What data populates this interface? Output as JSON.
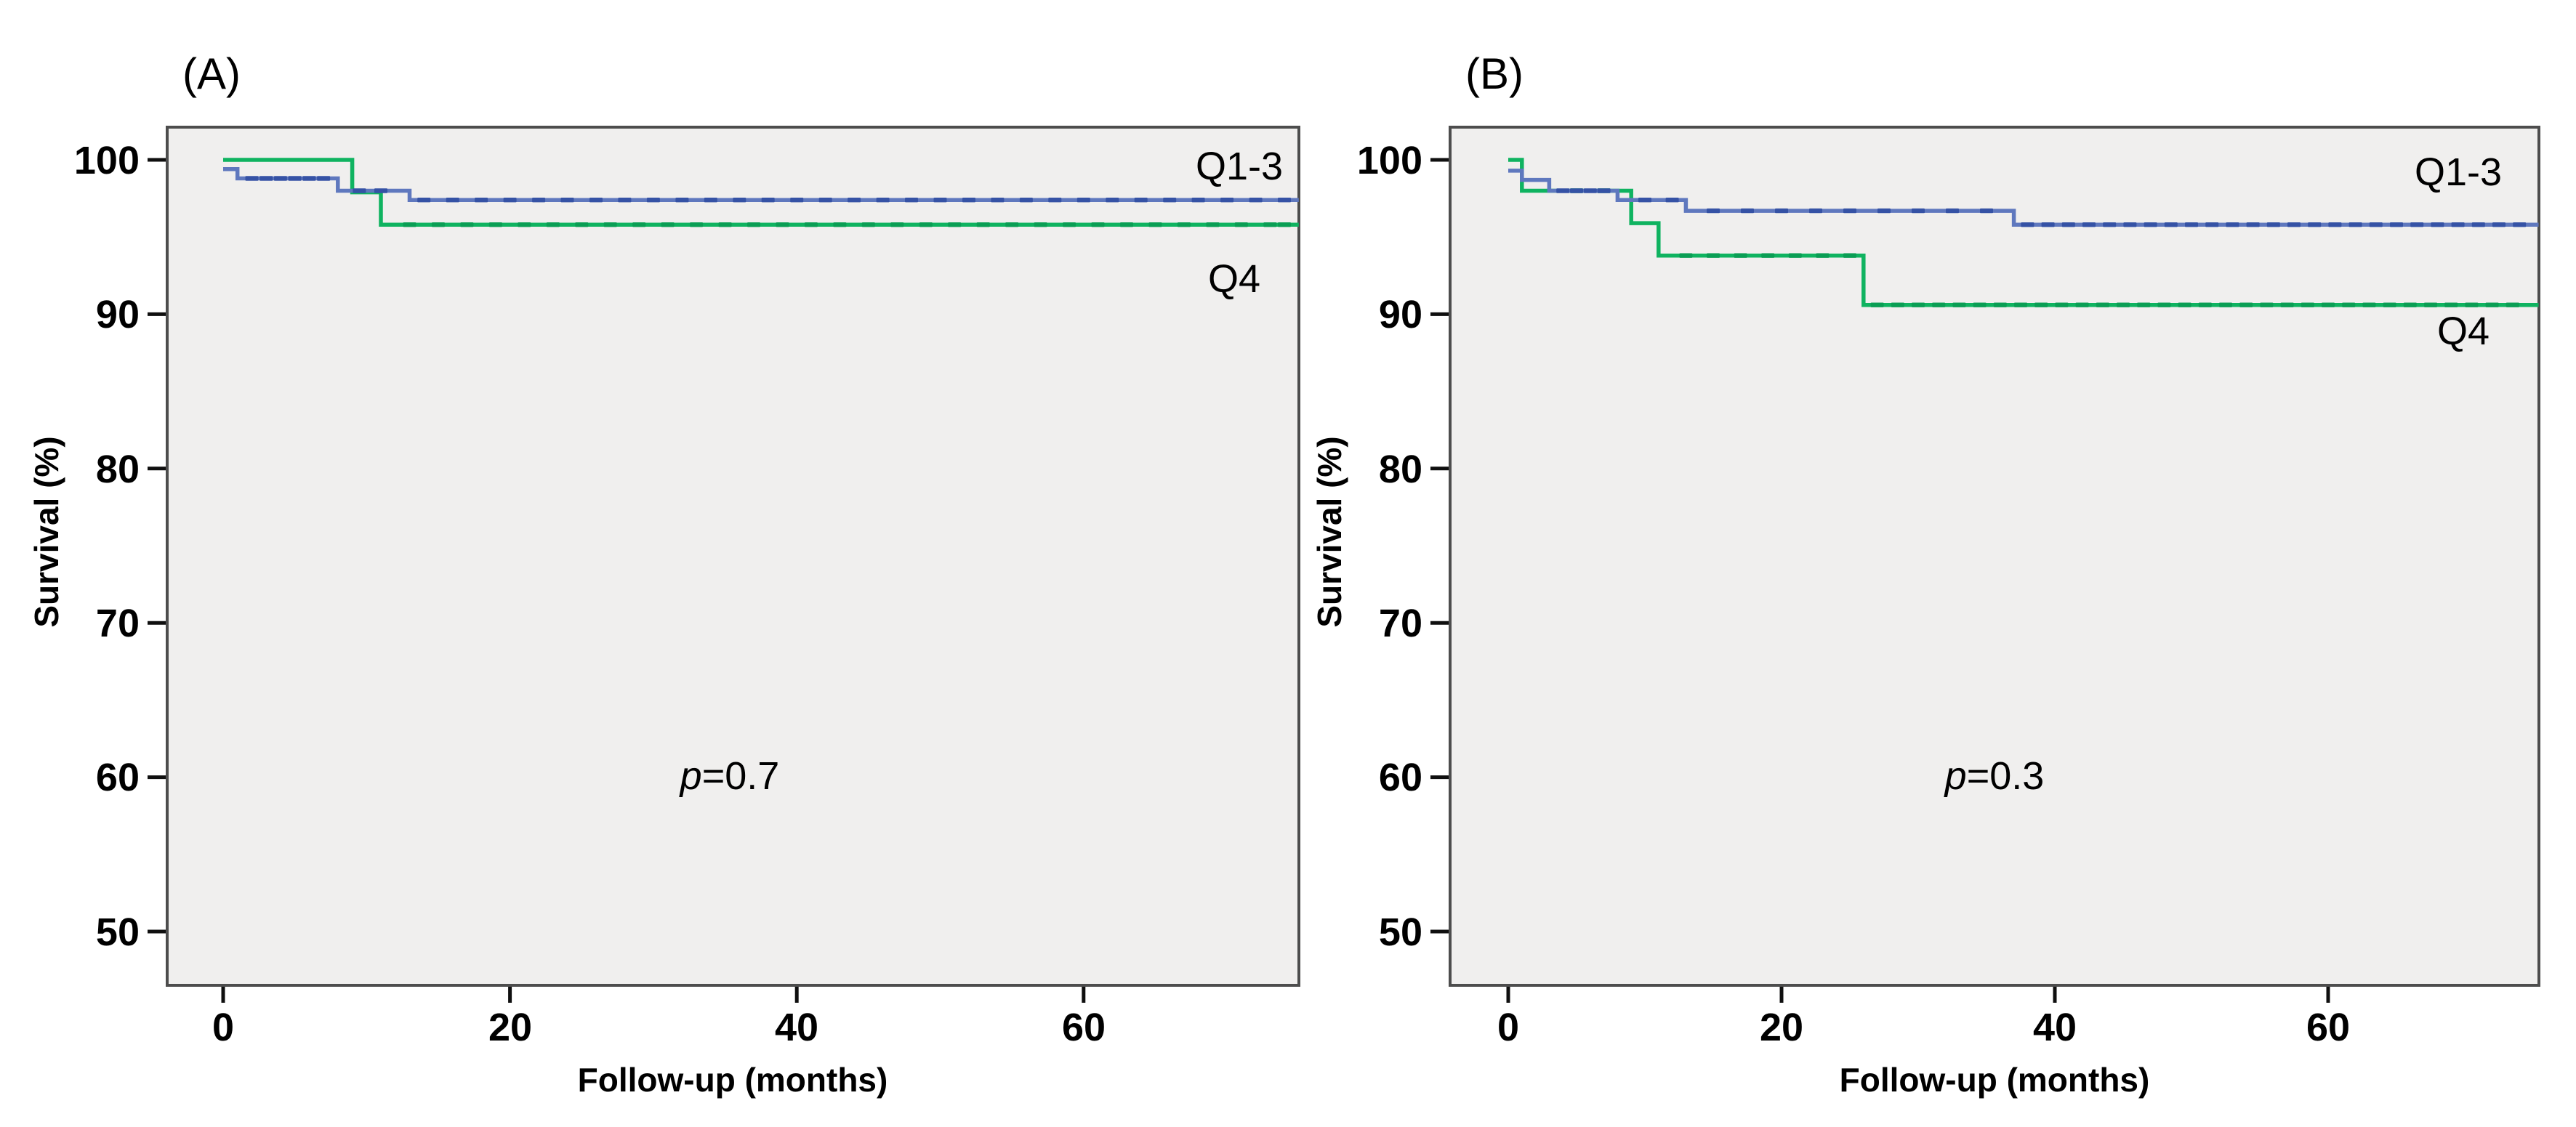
{
  "figure": {
    "background": "#ffffff",
    "plot_background": "#f0efee",
    "plot_border_color": "#4d4d4d",
    "tick_color": "#0f0f0f"
  },
  "chart_data": [
    {
      "type": "line",
      "subtype": "kaplan-meier-step",
      "panel_label": "(A)",
      "xlabel": "Follow-up (months)",
      "ylabel": "Survival (%)",
      "x_ticks": [
        0,
        20,
        40,
        60
      ],
      "y_ticks": [
        100,
        90,
        80,
        70,
        60,
        50
      ],
      "xlim": [
        -4,
        75
      ],
      "ylim": [
        46.5,
        102.1
      ],
      "grid": false,
      "legend_position": "inline-right",
      "annotation": {
        "italic": "p",
        "text": "=0.7"
      },
      "series": [
        {
          "name": "Q4",
          "color": "#0fb360",
          "censor_color": "#0a9e54",
          "steps": [
            [
              0,
              100
            ],
            [
              9,
              97.9
            ],
            [
              11,
              95.8
            ]
          ],
          "end_t": 75,
          "censors": [
            13,
            15,
            17,
            19,
            21,
            23,
            25,
            27,
            29,
            31,
            33,
            35,
            37,
            39,
            41,
            43,
            45,
            47,
            49,
            51,
            53,
            55,
            57,
            59,
            61,
            63,
            65,
            67,
            69,
            71,
            73,
            74
          ]
        },
        {
          "name": "Q1-3",
          "color": "#5f78be",
          "censor_color": "#3552a5",
          "steps": [
            [
              0,
              99.4
            ],
            [
              1,
              98.8
            ],
            [
              8,
              98.0
            ],
            [
              13,
              97.4
            ]
          ],
          "end_t": 75,
          "censors": [
            2,
            3,
            4,
            5,
            6,
            7,
            9.5,
            11,
            14,
            16,
            18,
            20,
            22,
            24,
            26,
            28,
            30,
            32,
            34,
            36,
            38,
            40,
            42,
            44,
            46,
            48,
            50,
            52,
            54,
            56,
            58,
            60,
            62,
            64,
            66,
            68,
            70,
            72,
            74
          ]
        }
      ]
    },
    {
      "type": "line",
      "subtype": "kaplan-meier-step",
      "panel_label": "(B)",
      "xlabel": "Follow-up (months)",
      "ylabel": "Survival (%)",
      "x_ticks": [
        0,
        20,
        40,
        60
      ],
      "y_ticks": [
        100,
        90,
        80,
        70,
        60,
        50
      ],
      "xlim": [
        -4.3,
        75.4
      ],
      "ylim": [
        46.5,
        102.1
      ],
      "grid": false,
      "legend_position": "inline-right",
      "annotation": {
        "italic": "p",
        "text": "=0.3"
      },
      "series": [
        {
          "name": "Q4",
          "color": "#0fb360",
          "censor_color": "#0a9e54",
          "steps": [
            [
              0,
              100
            ],
            [
              1,
              98.0
            ],
            [
              9,
              95.9
            ],
            [
              11,
              93.8
            ],
            [
              26,
              90.6
            ]
          ],
          "end_t": 75.4,
          "censors": [
            5,
            7,
            13,
            15,
            17,
            19,
            21,
            23,
            25,
            27,
            28.5,
            30,
            31.5,
            33,
            34.5,
            36,
            37.5,
            39,
            40.5,
            42,
            43.5,
            45,
            46.5,
            48,
            49.5,
            51,
            52.5,
            54,
            55.5,
            57,
            58.5,
            60,
            61.5,
            63,
            64.5,
            66,
            67.5,
            69,
            70.5,
            72,
            73.5
          ]
        },
        {
          "name": "Q1-3",
          "color": "#5f78be",
          "censor_color": "#3552a5",
          "steps": [
            [
              0,
              99.3
            ],
            [
              1,
              98.7
            ],
            [
              3,
              98.0
            ],
            [
              8,
              97.4
            ],
            [
              13,
              96.7
            ],
            [
              37,
              95.8
            ]
          ],
          "end_t": 75.4,
          "censors": [
            4,
            5,
            6,
            7,
            10,
            12,
            15,
            17.5,
            20,
            22.5,
            25,
            27.5,
            30,
            32.5,
            35,
            38,
            39.5,
            41,
            42.5,
            44,
            45.5,
            47,
            48.5,
            50,
            51.5,
            53,
            54.5,
            56,
            57.5,
            59,
            60.5,
            62,
            63.5,
            65,
            66.5,
            68,
            69.5,
            71,
            72.5,
            74
          ]
        }
      ]
    }
  ]
}
